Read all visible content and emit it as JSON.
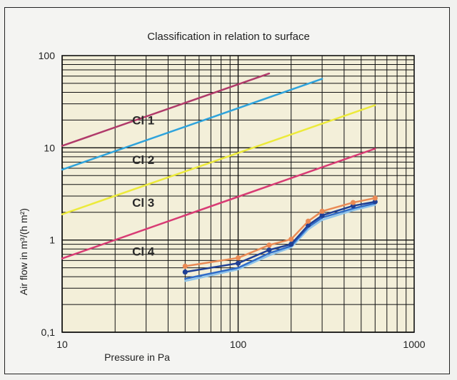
{
  "chart_data": {
    "type": "line",
    "title": "Classification in relation to surface",
    "xlabel": "Pressure in Pa",
    "ylabel": "Air flow   in m³/(h m²)",
    "x_scale": "log",
    "y_scale": "log",
    "xlim": [
      10,
      1000
    ],
    "ylim": [
      0.1,
      100
    ],
    "x_tick_labels": [
      "10",
      "100",
      "1000"
    ],
    "y_tick_labels": [
      "0,1",
      "1",
      "10",
      "100"
    ],
    "grid": true,
    "background": "#f3efd9",
    "class_labels": [
      {
        "text": "Cl 1",
        "x": 25,
        "y": 18
      },
      {
        "text": "Cl 2",
        "x": 25,
        "y": 6.7
      },
      {
        "text": "Cl 3",
        "x": 25,
        "y": 2.3
      },
      {
        "text": "Cl 4",
        "x": 25,
        "y": 0.68
      }
    ],
    "series": [
      {
        "color": "#b03a6a",
        "x": [
          10,
          150
        ],
        "y": [
          10.5,
          64
        ],
        "marker": false
      },
      {
        "color": "#2ea3dc",
        "x": [
          10,
          300
        ],
        "y": [
          5.8,
          56
        ],
        "marker": false
      },
      {
        "color": "#ecea3a",
        "x": [
          10,
          600
        ],
        "y": [
          1.9,
          29
        ],
        "marker": false
      },
      {
        "color": "#d83b74",
        "x": [
          10,
          600
        ],
        "y": [
          0.63,
          9.8
        ],
        "marker": false
      },
      {
        "color": "#8fc4ea",
        "x": [
          50,
          100,
          150,
          200,
          250,
          300,
          450,
          600
        ],
        "y": [
          0.36,
          0.48,
          0.68,
          0.83,
          1.3,
          1.65,
          2.1,
          2.4
        ],
        "marker": false
      },
      {
        "color": "#2e6bc8",
        "x": [
          50,
          100,
          150,
          200,
          250,
          300,
          450,
          600
        ],
        "y": [
          0.38,
          0.5,
          0.72,
          0.86,
          1.38,
          1.75,
          2.2,
          2.5
        ],
        "marker": false
      },
      {
        "color": "#1f3f95",
        "x": [
          50,
          100,
          150,
          200,
          250,
          300,
          450,
          600
        ],
        "y": [
          0.45,
          0.56,
          0.78,
          0.9,
          1.45,
          1.85,
          2.35,
          2.6
        ],
        "marker": true
      },
      {
        "color": "#ea8a55",
        "x": [
          50,
          100,
          150,
          200,
          250,
          300,
          450,
          600
        ],
        "y": [
          0.52,
          0.64,
          0.88,
          1.02,
          1.6,
          2.05,
          2.55,
          2.85
        ],
        "marker": true
      }
    ]
  }
}
